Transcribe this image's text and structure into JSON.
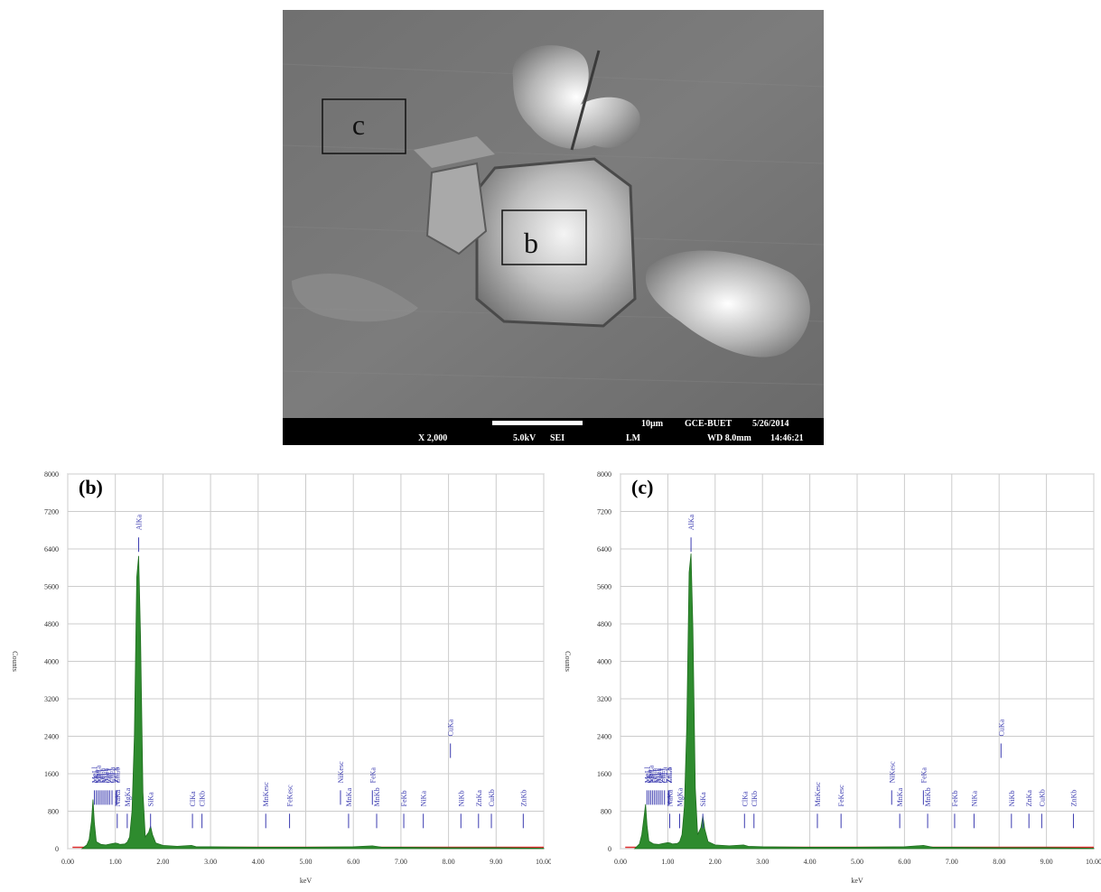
{
  "sem_image": {
    "box_labels": [
      "c",
      "b"
    ],
    "info_bar": {
      "magnification": "X 2,000",
      "voltage": "5.0kV",
      "mode": "SEI",
      "lens": "LM",
      "scale": "10µm",
      "lab": "GCE-BUET",
      "date": "5/26/2014",
      "wd": "WD 8.0mm",
      "time": "14:46:21"
    }
  },
  "chart_data": [
    {
      "type": "area",
      "panel_label": "(b)",
      "xlabel": "keV",
      "ylabel": "Counts",
      "xlim": [
        0,
        10
      ],
      "ylim": [
        0,
        8000
      ],
      "x_ticks": [
        "0.00",
        "1.00",
        "2.00",
        "3.00",
        "4.00",
        "5.00",
        "6.00",
        "7.00",
        "8.00",
        "9.00",
        "10.00"
      ],
      "y_ticks": [
        "0",
        "800",
        "1600",
        "2400",
        "3200",
        "4000",
        "4800",
        "5600",
        "6400",
        "7200",
        "8000"
      ],
      "grid": true,
      "series": [
        {
          "x": [
            0.3,
            0.4,
            0.45,
            0.5,
            0.53,
            0.56,
            0.6,
            0.7,
            0.8,
            0.9,
            1.0,
            1.05,
            1.1,
            1.2,
            1.25,
            1.3,
            1.35,
            1.4,
            1.45,
            1.49,
            1.53,
            1.58,
            1.63,
            1.7,
            1.74,
            1.78,
            1.85,
            2.0,
            2.3,
            2.6,
            2.7,
            3.0,
            4.0,
            5.0,
            6.0,
            6.4,
            6.6,
            7.0,
            8.0,
            9.0,
            10.0
          ],
          "y": [
            0,
            80,
            200,
            600,
            1050,
            550,
            150,
            90,
            80,
            100,
            120,
            110,
            90,
            100,
            140,
            250,
            800,
            2400,
            5800,
            6250,
            4500,
            1200,
            250,
            350,
            480,
            300,
            120,
            70,
            50,
            70,
            40,
            40,
            30,
            30,
            40,
            60,
            30,
            30,
            20,
            20,
            10
          ]
        }
      ],
      "peaks": [
        {
          "label": "MnLl",
          "x": 0.56
        },
        {
          "label": "CKa",
          "x": 0.6
        },
        {
          "label": "MnLa",
          "x": 0.64
        },
        {
          "label": "FeLl",
          "x": 0.68
        },
        {
          "label": "FeLa",
          "x": 0.72
        },
        {
          "label": "NiLl",
          "x": 0.76
        },
        {
          "label": "NiLa",
          "x": 0.8
        },
        {
          "label": "CuLl",
          "x": 0.84
        },
        {
          "label": "ZnLl",
          "x": 0.88
        },
        {
          "label": "CuLa",
          "x": 0.93
        },
        {
          "label": "ZnLa",
          "x": 1.01
        },
        {
          "label": "ZnLb",
          "x": 1.03
        },
        {
          "label": "NaKa",
          "x": 1.04
        },
        {
          "label": "MgKa",
          "x": 1.25
        },
        {
          "label": "AlKa",
          "x": 1.49
        },
        {
          "label": "SiKa",
          "x": 1.74
        },
        {
          "label": "ClKa",
          "x": 2.62
        },
        {
          "label": "ClKb",
          "x": 2.82
        },
        {
          "label": "MnKesc",
          "x": 4.16
        },
        {
          "label": "FeKesc",
          "x": 4.66
        },
        {
          "label": "NiKesc",
          "x": 5.73
        },
        {
          "label": "MnKa",
          "x": 5.9
        },
        {
          "label": "FeKa",
          "x": 6.4
        },
        {
          "label": "MnKb",
          "x": 6.49
        },
        {
          "label": "FeKb",
          "x": 7.06
        },
        {
          "label": "NiKa",
          "x": 7.47
        },
        {
          "label": "CuKa",
          "x": 8.04
        },
        {
          "label": "NiKb",
          "x": 8.26
        },
        {
          "label": "ZnKa",
          "x": 8.63
        },
        {
          "label": "CuKb",
          "x": 8.9
        },
        {
          "label": "ZnKb",
          "x": 9.57
        }
      ]
    },
    {
      "type": "area",
      "panel_label": "(c)",
      "xlabel": "keV",
      "ylabel": "Counts",
      "xlim": [
        0,
        10
      ],
      "ylim": [
        0,
        8000
      ],
      "x_ticks": [
        "0.00",
        "1.00",
        "2.00",
        "3.00",
        "4.00",
        "5.00",
        "6.00",
        "7.00",
        "8.00",
        "9.00",
        "10.00"
      ],
      "y_ticks": [
        "0",
        "800",
        "1600",
        "2400",
        "3200",
        "4000",
        "4800",
        "5600",
        "6400",
        "7200",
        "8000"
      ],
      "grid": true,
      "series": [
        {
          "x": [
            0.3,
            0.4,
            0.45,
            0.5,
            0.53,
            0.56,
            0.6,
            0.7,
            0.8,
            0.9,
            1.0,
            1.05,
            1.1,
            1.2,
            1.25,
            1.3,
            1.35,
            1.4,
            1.45,
            1.49,
            1.53,
            1.58,
            1.63,
            1.7,
            1.74,
            1.78,
            1.85,
            2.0,
            2.3,
            2.6,
            2.7,
            3.0,
            4.0,
            5.0,
            6.0,
            6.4,
            6.6,
            7.0,
            8.0,
            9.0,
            10.0
          ],
          "y": [
            0,
            100,
            300,
            700,
            950,
            500,
            160,
            100,
            90,
            110,
            130,
            120,
            100,
            110,
            150,
            300,
            900,
            2600,
            5900,
            6300,
            4700,
            1300,
            300,
            450,
            700,
            420,
            150,
            80,
            60,
            80,
            50,
            40,
            30,
            30,
            40,
            70,
            30,
            30,
            20,
            20,
            10
          ]
        }
      ],
      "peaks": [
        {
          "label": "MnLl",
          "x": 0.56
        },
        {
          "label": "CKa",
          "x": 0.6
        },
        {
          "label": "MnLa",
          "x": 0.64
        },
        {
          "label": "FeLl",
          "x": 0.68
        },
        {
          "label": "FeLa",
          "x": 0.72
        },
        {
          "label": "NiLl",
          "x": 0.76
        },
        {
          "label": "NiLa",
          "x": 0.8
        },
        {
          "label": "CuLl",
          "x": 0.84
        },
        {
          "label": "ZnLl",
          "x": 0.88
        },
        {
          "label": "CuLa",
          "x": 0.93
        },
        {
          "label": "ZnLa",
          "x": 1.01
        },
        {
          "label": "ZnLb",
          "x": 1.03
        },
        {
          "label": "NaKa",
          "x": 1.04
        },
        {
          "label": "MgKa",
          "x": 1.25
        },
        {
          "label": "AlKa",
          "x": 1.49
        },
        {
          "label": "SiKa",
          "x": 1.74
        },
        {
          "label": "ClKa",
          "x": 2.62
        },
        {
          "label": "ClKb",
          "x": 2.82
        },
        {
          "label": "MnKesc",
          "x": 4.16
        },
        {
          "label": "FeKesc",
          "x": 4.66
        },
        {
          "label": "NiKesc",
          "x": 5.73
        },
        {
          "label": "MnKa",
          "x": 5.9
        },
        {
          "label": "FeKa",
          "x": 6.4
        },
        {
          "label": "MnKb",
          "x": 6.49
        },
        {
          "label": "FeKb",
          "x": 7.06
        },
        {
          "label": "NiKa",
          "x": 7.47
        },
        {
          "label": "CuKa",
          "x": 8.04
        },
        {
          "label": "NiKb",
          "x": 8.26
        },
        {
          "label": "ZnKa",
          "x": 8.63
        },
        {
          "label": "CuKb",
          "x": 8.9
        },
        {
          "label": "ZnKb",
          "x": 9.57
        }
      ]
    }
  ],
  "colors": {
    "spectrum_fill": "#2e8b2e",
    "spectrum_stroke": "#1f6e1f",
    "baseline": "#e03030",
    "peak_marker": "#3b3bb0",
    "grid": "#cccccc",
    "sem_bg": "#6e6e6e",
    "sem_bar": "#000000"
  }
}
